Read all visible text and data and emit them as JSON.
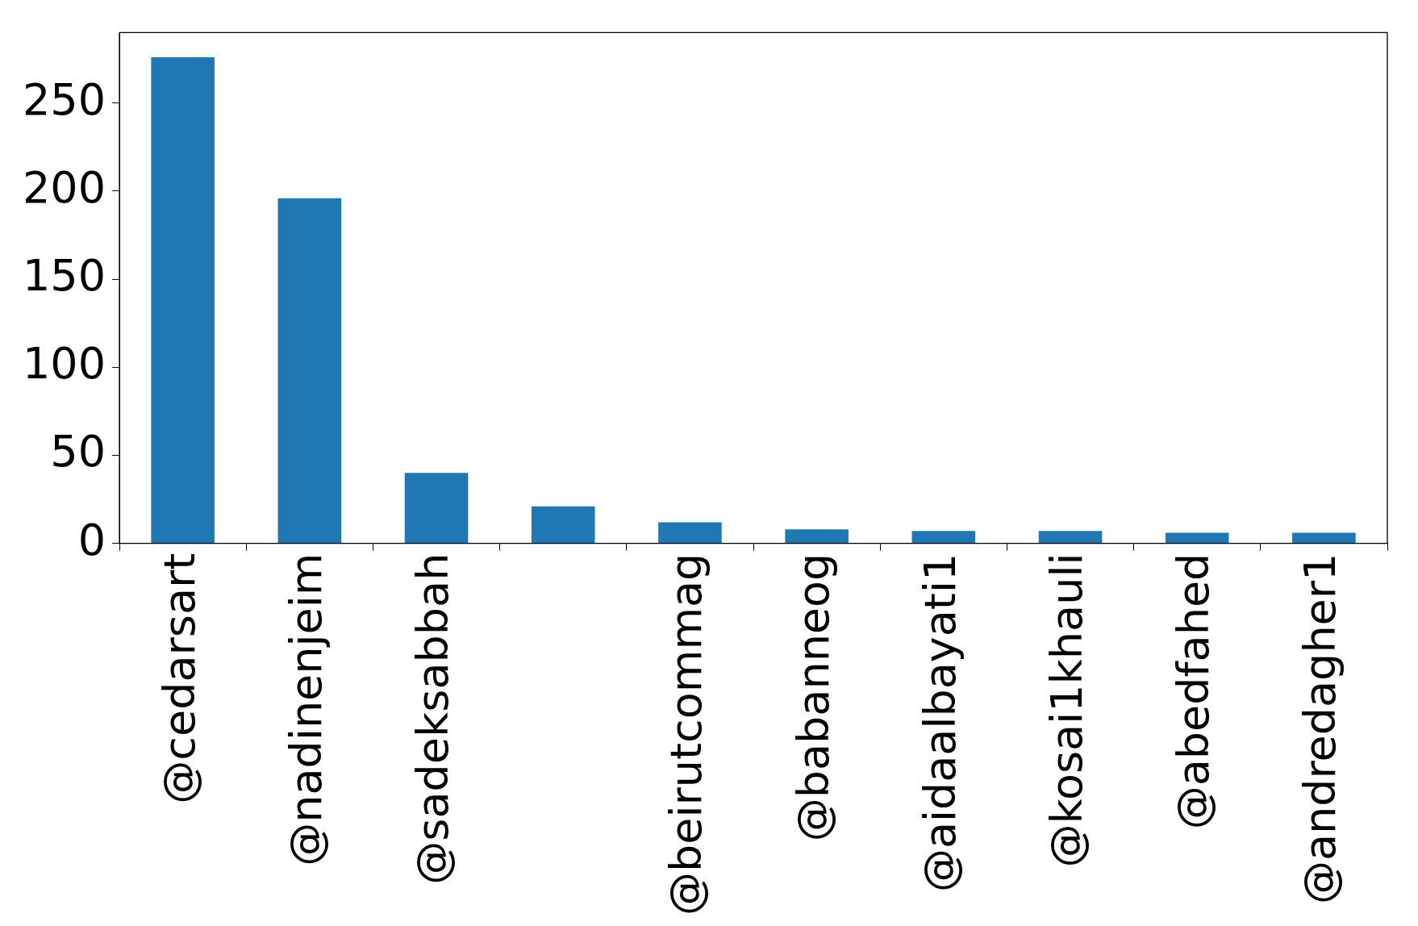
{
  "chart_data": {
    "type": "bar",
    "categories": [
      "@cedarsart",
      "@nadinenjeim",
      "@sadeksabbah",
      null,
      "@beirutcommag",
      "@babanneog",
      "@aidaalbayati1",
      "@kosai1khauli",
      "@abedfahed",
      "@andredagher1"
    ],
    "values": [
      276,
      196,
      40,
      21,
      12,
      8,
      7,
      7,
      6,
      6
    ],
    "color": "#1f77b4",
    "ylim": [
      0,
      290
    ],
    "yticks": [
      0,
      50,
      100,
      150,
      200,
      250
    ],
    "grid": false,
    "legend": false
  }
}
